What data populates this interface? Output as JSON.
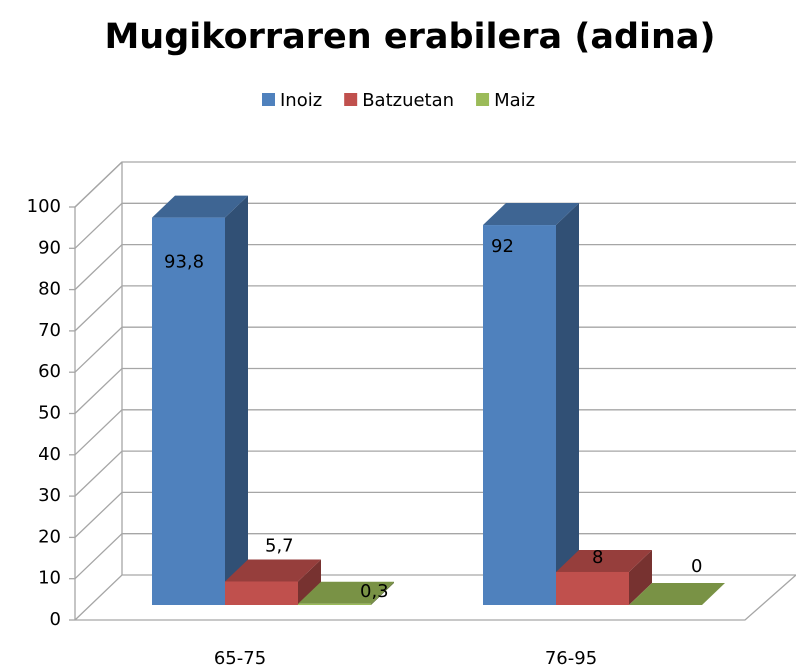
{
  "chart_data": {
    "type": "bar3d",
    "title": "Mugikorraren erabilera (adina)",
    "categories": [
      "65-75",
      "76-95"
    ],
    "series": [
      {
        "name": "Inoiz",
        "color": "#4f81bd",
        "values": [
          93.8,
          92
        ],
        "value_labels": [
          "93,8",
          "92"
        ]
      },
      {
        "name": "Batzuetan",
        "color": "#c0504d",
        "values": [
          5.7,
          8
        ],
        "value_labels": [
          "5,7",
          "8"
        ]
      },
      {
        "name": "Maiz",
        "color": "#9bbb59",
        "values": [
          0.3,
          0
        ],
        "value_labels": [
          "0,3",
          "0"
        ]
      }
    ],
    "ylim": [
      0,
      100
    ],
    "yticks": [
      0,
      10,
      20,
      30,
      40,
      50,
      60,
      70,
      80,
      90,
      100
    ],
    "grid": true,
    "legend": "top"
  }
}
